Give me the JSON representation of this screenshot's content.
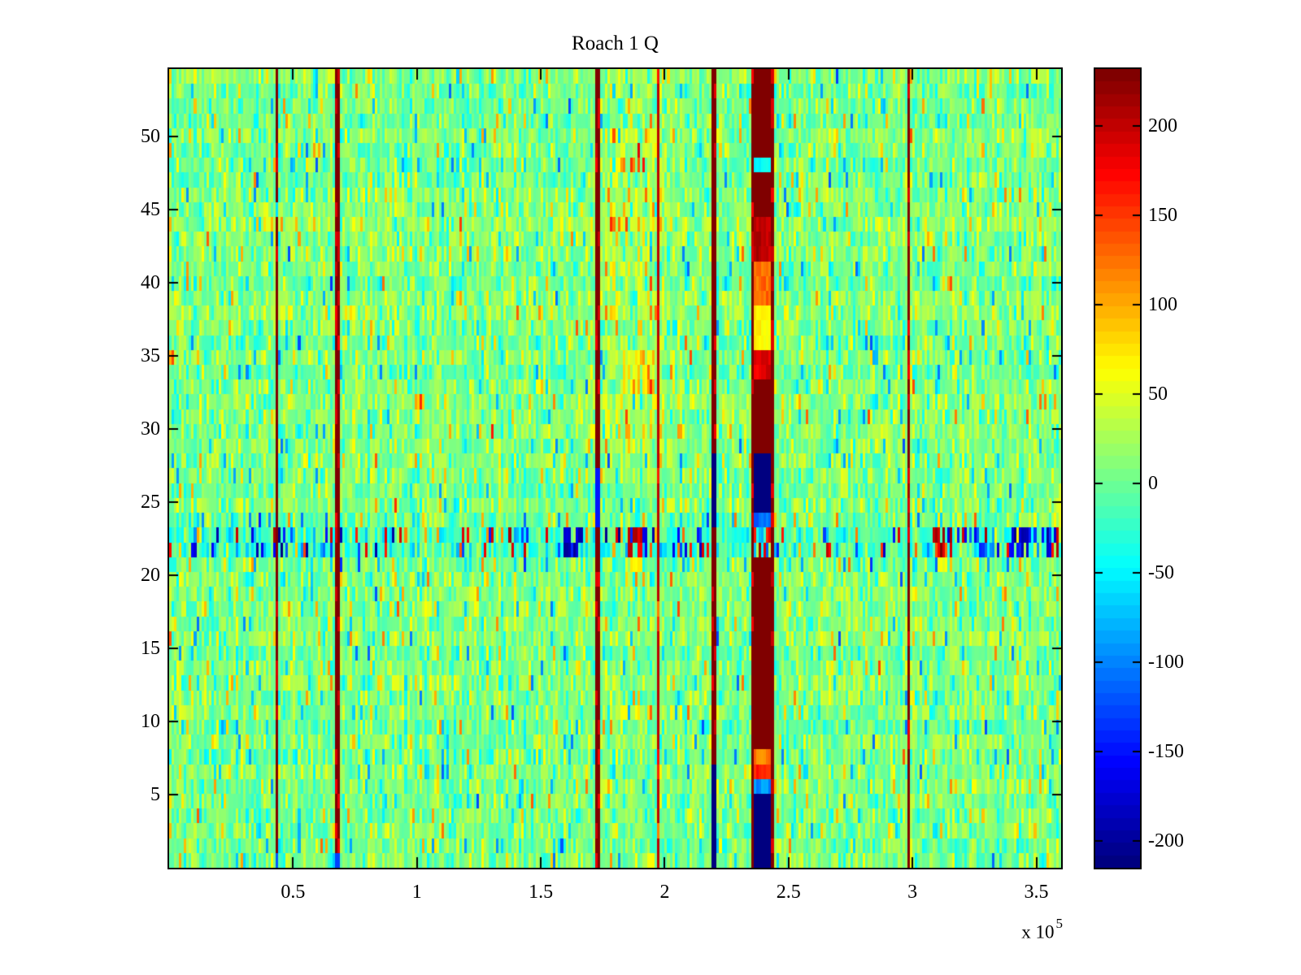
{
  "chart_data": {
    "type": "heatmap",
    "title": "Roach 1 Q",
    "colormap": "jet",
    "grid": {
      "rows": 54,
      "cols": 360
    },
    "x_range": [
      0,
      360000
    ],
    "y_range": [
      0,
      54.6
    ],
    "x_ticks": [
      50000,
      100000,
      150000,
      200000,
      250000,
      300000,
      350000
    ],
    "x_tick_labels": [
      "0.5",
      "1",
      "1.5",
      "2",
      "2.5",
      "3",
      "3.5"
    ],
    "x_exponent_text": "x 10",
    "x_exponent": "5",
    "y_ticks": [
      5,
      10,
      15,
      20,
      25,
      30,
      35,
      40,
      45,
      50
    ],
    "y_tick_labels": [
      "5",
      "10",
      "15",
      "20",
      "25",
      "30",
      "35",
      "40",
      "45",
      "50"
    ],
    "color_axis": [
      -215,
      232
    ],
    "colorbar_ticks": [
      200,
      150,
      100,
      50,
      0,
      -50,
      -100,
      -150,
      -200
    ],
    "colorbar_tick_labels": [
      "200",
      "150",
      "100",
      "50",
      "0",
      "-50",
      "-100",
      "-150",
      "-200"
    ],
    "colorbar_levels": 64,
    "noise": {
      "seed": 20240613,
      "mean": 6,
      "std": 24,
      "row_bias_std": 5,
      "col_bias_std": 4,
      "speckle_prob": 0.09,
      "speckle_min": 40,
      "speckle_max": 95
    },
    "regions": [
      {
        "x0": 176000,
        "x1": 201000,
        "r0": 28,
        "r1": 54,
        "bias": 14,
        "hot_prob": 0.1,
        "hot_min": 25,
        "hot_max": 60
      },
      {
        "x0": 178000,
        "x1": 197000,
        "r0": 8,
        "r1": 12,
        "bias": 12,
        "hot_prob": 0.08,
        "hot_min": 20,
        "hot_max": 45
      },
      {
        "x0": 183000,
        "x1": 196000,
        "r0": 33,
        "r1": 35,
        "bias": 34,
        "hot_prob": 0.3,
        "hot_min": 10,
        "hot_max": 30
      },
      {
        "x0": 181000,
        "x1": 194000,
        "r0": 48,
        "r1": 48,
        "bias": 0,
        "hot_prob": 0.5,
        "hot_min": 80,
        "hot_max": 60
      }
    ],
    "noisy_rows": {
      "rows": [
        22,
        23
      ],
      "base_mean": -20,
      "base_std": 28,
      "tick_prob": 0.16,
      "tick_min": 85,
      "tick_max": 215,
      "neg_frac": 0.55,
      "clusters": [
        {
          "x0": 159000,
          "x1": 168000,
          "p": 0.7,
          "sign": -1,
          "lo": 140,
          "hi": 215
        },
        {
          "x0": 185000,
          "x1": 191500,
          "p": 0.8,
          "sign": 1,
          "lo": 150,
          "hi": 232
        },
        {
          "x0": 191500,
          "x1": 193500,
          "p": 0.7,
          "sign": -1,
          "lo": 160,
          "hi": 215
        },
        {
          "x0": 205000,
          "x1": 218000,
          "p": 0.25,
          "sign": 0,
          "lo": 100,
          "hi": 200
        },
        {
          "x0": 308000,
          "x1": 316000,
          "p": 0.6,
          "sign": 1,
          "lo": 140,
          "hi": 230
        },
        {
          "x0": 318000,
          "x1": 332000,
          "p": 0.3,
          "sign": -1,
          "lo": 100,
          "hi": 180
        },
        {
          "x0": 339000,
          "x1": 348000,
          "p": 0.75,
          "sign": -1,
          "lo": 140,
          "hi": 215
        },
        {
          "x0": 352000,
          "x1": 360000,
          "p": 0.5,
          "sign": 0,
          "lo": 120,
          "hi": 210
        }
      ],
      "adjacent": {
        "rows": [
          21,
          24
        ],
        "tick_prob": 0.05,
        "tick_min": 60,
        "tick_max": 150
      },
      "warm_blobs": [
        {
          "x0": 186000,
          "x1": 190500,
          "row": 21,
          "value": 55,
          "jitter": 20
        },
        {
          "x0": 310000,
          "x1": 314000,
          "row": 21,
          "value": 50,
          "jitter": 20
        }
      ]
    },
    "vstripes": [
      {
        "x0": 43200,
        "x1": 44300,
        "value": 232,
        "overrides": [
          {
            "rows": [
              45,
              45
            ],
            "value": -60
          },
          {
            "rows": [
              1,
              1
            ],
            "value": -120
          }
        ]
      },
      {
        "x0": 67000,
        "x1": 68600,
        "value": 232,
        "overrides": [
          {
            "rows": [
              1,
              1
            ],
            "value": -130
          }
        ]
      },
      {
        "x0": 172500,
        "x1": 173600,
        "value": 232,
        "overrides": [
          {
            "rows": [
              24,
              27
            ],
            "value": -150
          }
        ]
      },
      {
        "x0": 196600,
        "x1": 197600,
        "value": 205,
        "overrides": [
          {
            "rows": [
              18,
              18
            ],
            "value": 120
          },
          {
            "rows": [
              3,
              3
            ],
            "value": 120
          }
        ]
      },
      {
        "x0": 219500,
        "x1": 221500,
        "value": 232,
        "overrides": [
          {
            "rows": [
              24,
              28
            ],
            "value": -215
          },
          {
            "rows": [
              1,
              7
            ],
            "value": -215
          }
        ]
      },
      {
        "x0": 235200,
        "x1": 236000,
        "value": 232,
        "overrides": []
      },
      {
        "x0": 243000,
        "x1": 244200,
        "value": 232,
        "overrides": []
      },
      {
        "x0": 297900,
        "x1": 298900,
        "value": 232,
        "overrides": [
          {
            "rows": [
              23,
              27
            ],
            "value": 185,
            "jitter": 40
          }
        ]
      },
      {
        "x0": 236000,
        "x1": 243000,
        "value": 232,
        "segments": [
          {
            "rows": [
              1,
              5
            ],
            "value": -215
          },
          {
            "rows": [
              6,
              6
            ],
            "value": -115,
            "jitter": 35
          },
          {
            "rows": [
              7,
              7
            ],
            "value": 150,
            "jitter": 30
          },
          {
            "rows": [
              8,
              8
            ],
            "value": 105,
            "jitter": 30
          },
          {
            "rows": [
              9,
              21
            ],
            "value": 232
          },
          {
            "rows": [
              22,
              23
            ],
            "noisy_red": true
          },
          {
            "rows": [
              24,
              24
            ],
            "value": -125,
            "jitter": 30
          },
          {
            "rows": [
              25,
              28
            ],
            "value": -215
          },
          {
            "rows": [
              29,
              33
            ],
            "value": 232
          },
          {
            "rows": [
              34,
              35
            ],
            "value": 170,
            "jitter": 35
          },
          {
            "rows": [
              36,
              38
            ],
            "value": 55,
            "jitter": 25
          },
          {
            "rows": [
              39,
              41
            ],
            "value": 115,
            "jitter": 30
          },
          {
            "rows": [
              42,
              44
            ],
            "value": 190,
            "jitter": 30
          },
          {
            "rows": [
              45,
              47
            ],
            "value": 232
          },
          {
            "rows": [
              48,
              48
            ],
            "value": -55,
            "jitter": 20
          },
          {
            "rows": [
              49,
              54
            ],
            "value": 232
          }
        ]
      }
    ]
  }
}
